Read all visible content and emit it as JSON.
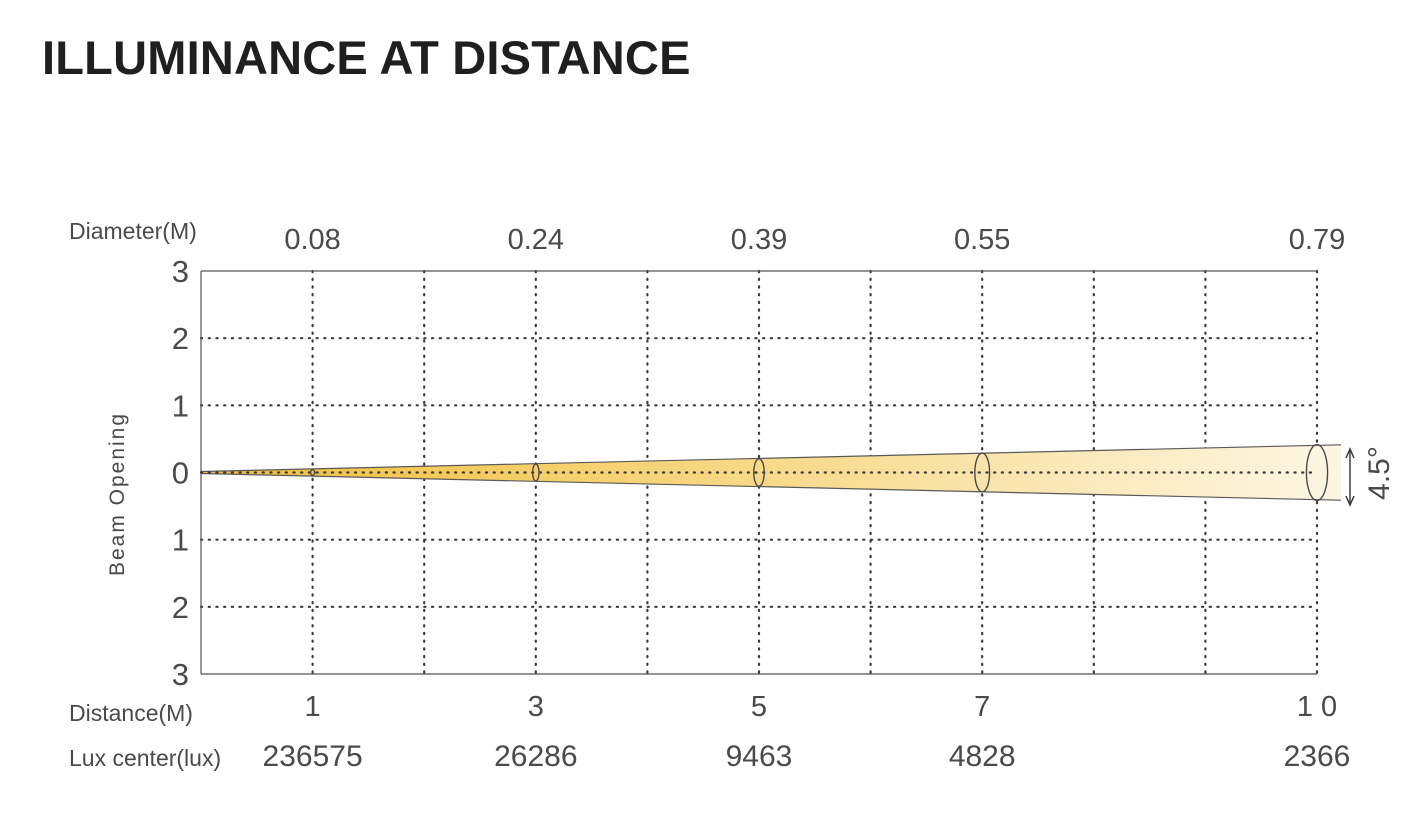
{
  "title": "ILLUMINANCE AT DISTANCE",
  "colors": {
    "beam_near": "#f1bf3a",
    "beam_far": "#fdf6e4",
    "grid": "#3a3a3a",
    "text": "#4a4a4a"
  },
  "chart_data": {
    "type": "beam-spread",
    "title": "ILLUMINANCE AT DISTANCE",
    "beam_angle_label": "4.5°",
    "beam_angle_deg": 4.5,
    "distance_label": "Distance(M)",
    "diameter_label": "Diameter(M)",
    "lux_label": "Lux center(lux)",
    "ylabel": "Beam Opening",
    "x_range": [
      0,
      10
    ],
    "y_range": [
      -3,
      3
    ],
    "y_tick_labels": [
      "3",
      "2",
      "1",
      "0",
      "1",
      "2",
      "3"
    ],
    "grid": true,
    "points": [
      {
        "distance": 1,
        "distance_label": "1",
        "diameter": 0.08,
        "diameter_label": "0.08",
        "lux": 236575,
        "lux_label": "236575"
      },
      {
        "distance": 3,
        "distance_label": "3",
        "diameter": 0.24,
        "diameter_label": "0.24",
        "lux": 26286,
        "lux_label": "26286"
      },
      {
        "distance": 5,
        "distance_label": "5",
        "diameter": 0.39,
        "diameter_label": "0.39",
        "lux": 9463,
        "lux_label": "9463"
      },
      {
        "distance": 7,
        "distance_label": "7",
        "diameter": 0.55,
        "diameter_label": "0.55",
        "lux": 4828,
        "lux_label": "4828"
      },
      {
        "distance": 10,
        "distance_label": "1 0",
        "diameter": 0.79,
        "diameter_label": "0.79",
        "lux": 2366,
        "lux_label": "2366"
      }
    ]
  }
}
